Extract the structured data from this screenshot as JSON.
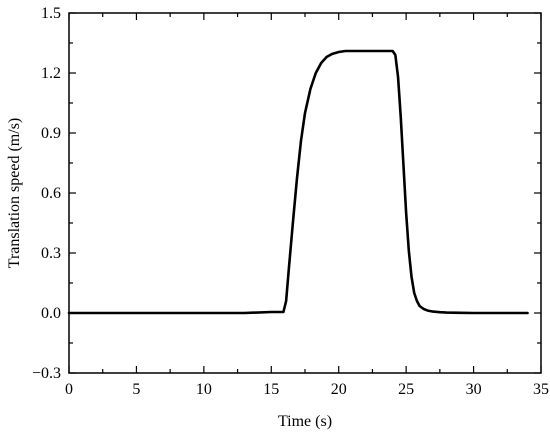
{
  "chart_data": {
    "type": "line",
    "xlabel": "Time (s)",
    "ylabel": "Translation speed (m/s)",
    "xlim": [
      0,
      35
    ],
    "ylim": [
      -0.3,
      1.5
    ],
    "x_ticks": [
      0,
      5,
      10,
      15,
      20,
      25,
      30,
      35
    ],
    "y_ticks": [
      -0.3,
      0.0,
      0.3,
      0.6,
      0.9,
      1.2,
      1.5
    ],
    "x_tick_labels": [
      "0",
      "5",
      "10",
      "15",
      "20",
      "25",
      "30",
      "35"
    ],
    "y_tick_labels": [
      "−0.3",
      "0.0",
      "0.3",
      "0.6",
      "0.9",
      "1.2",
      "1.5"
    ],
    "grid": false,
    "line_color": "#000000",
    "series": [
      {
        "x": [
          0,
          5,
          10,
          13,
          15,
          15.9,
          16.1,
          16.3,
          16.6,
          16.9,
          17.2,
          17.5,
          17.9,
          18.3,
          18.7,
          19.1,
          19.5,
          20,
          20.5,
          21,
          22,
          23,
          24,
          24.2,
          24.4,
          24.6,
          24.8,
          25.0,
          25.2,
          25.4,
          25.6,
          25.8,
          26.0,
          26.3,
          26.6,
          27,
          27.5,
          28,
          29,
          30,
          32,
          34
        ],
        "y": [
          0.0,
          0.0,
          0.0,
          0.0,
          0.005,
          0.005,
          0.06,
          0.22,
          0.45,
          0.67,
          0.86,
          1.0,
          1.12,
          1.2,
          1.25,
          1.28,
          1.295,
          1.305,
          1.31,
          1.31,
          1.31,
          1.31,
          1.31,
          1.29,
          1.18,
          0.98,
          0.74,
          0.5,
          0.31,
          0.18,
          0.1,
          0.06,
          0.035,
          0.02,
          0.012,
          0.007,
          0.004,
          0.002,
          0.001,
          0.0,
          0.0,
          0.0
        ]
      }
    ]
  }
}
